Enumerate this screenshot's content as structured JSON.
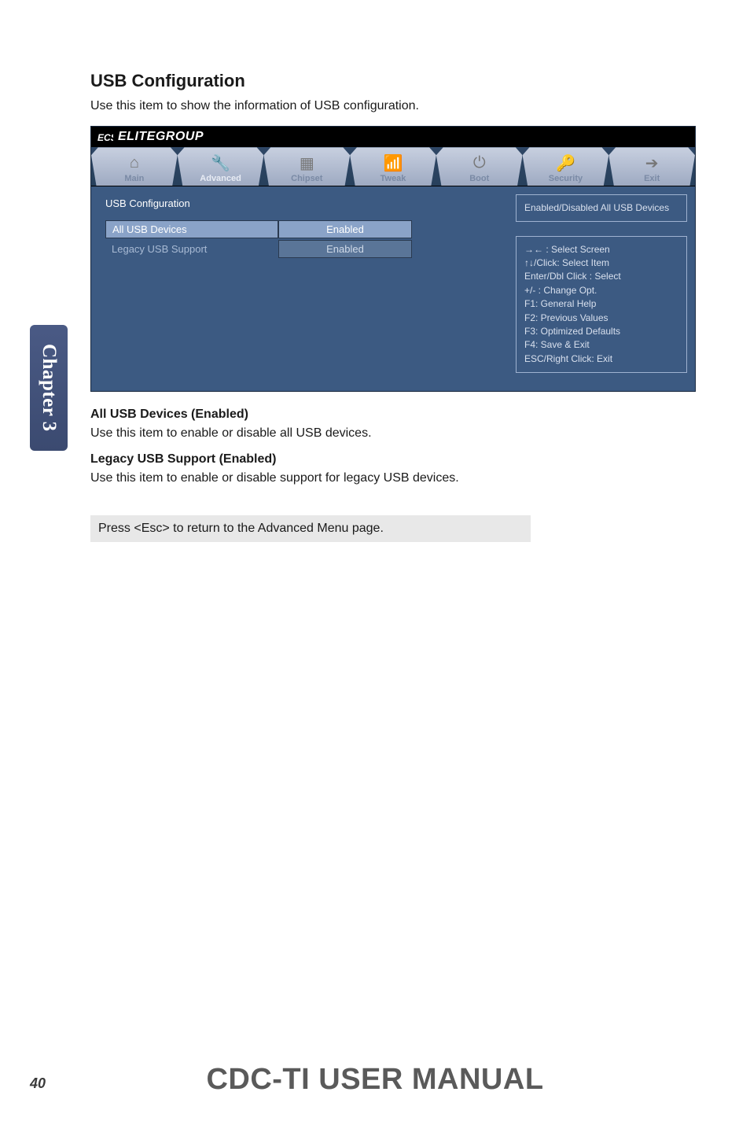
{
  "page": {
    "number": "40",
    "chapter_tab": "Chapter 3",
    "footer_title": "CDC-TI USER MANUAL"
  },
  "section": {
    "title": "USB Configuration",
    "intro": "Use this item to show the information of USB configuration."
  },
  "bios": {
    "brand": "ELITEGROUP",
    "background_color": "#3c5a82",
    "tabs": [
      {
        "label": "Main",
        "icon": "home-icon",
        "glyph": "⌂"
      },
      {
        "label": "Advanced",
        "icon": "wrench-icon",
        "glyph": "🔧",
        "active": true
      },
      {
        "label": "Chipset",
        "icon": "chip-icon",
        "glyph": "▦"
      },
      {
        "label": "Tweak",
        "icon": "antenna-icon",
        "glyph": "📶"
      },
      {
        "label": "Boot",
        "icon": "power-icon",
        "glyph": "⏻"
      },
      {
        "label": "Security",
        "icon": "key-icon",
        "glyph": "🔑"
      },
      {
        "label": "Exit",
        "icon": "exit-icon",
        "glyph": "➔"
      }
    ],
    "panel_title": "USB Configuration",
    "rows": [
      {
        "label": "All USB Devices",
        "value": "Enabled",
        "selected": true
      },
      {
        "label": "Legacy USB Support",
        "value": "Enabled",
        "dim": true
      }
    ],
    "help_text": "Enabled/Disabled All USB Devices",
    "keys": [
      "→←    : Select Screen",
      "↑↓/Click: Select Item",
      "Enter/Dbl Click : Select",
      "+/- : Change Opt.",
      "F1: General Help",
      "F2: Previous Values",
      "F3: Optimized Defaults",
      "F4: Save & Exit",
      "ESC/Right Click: Exit"
    ]
  },
  "subsections": [
    {
      "heading": "All USB Devices (Enabled)",
      "text": "Use this item to enable or disable all USB devices."
    },
    {
      "heading": "Legacy USB Support (Enabled)",
      "text": "Use this item to enable or disable support for legacy USB devices."
    }
  ],
  "esc_note": "Press <Esc> to return to the Advanced Menu page."
}
